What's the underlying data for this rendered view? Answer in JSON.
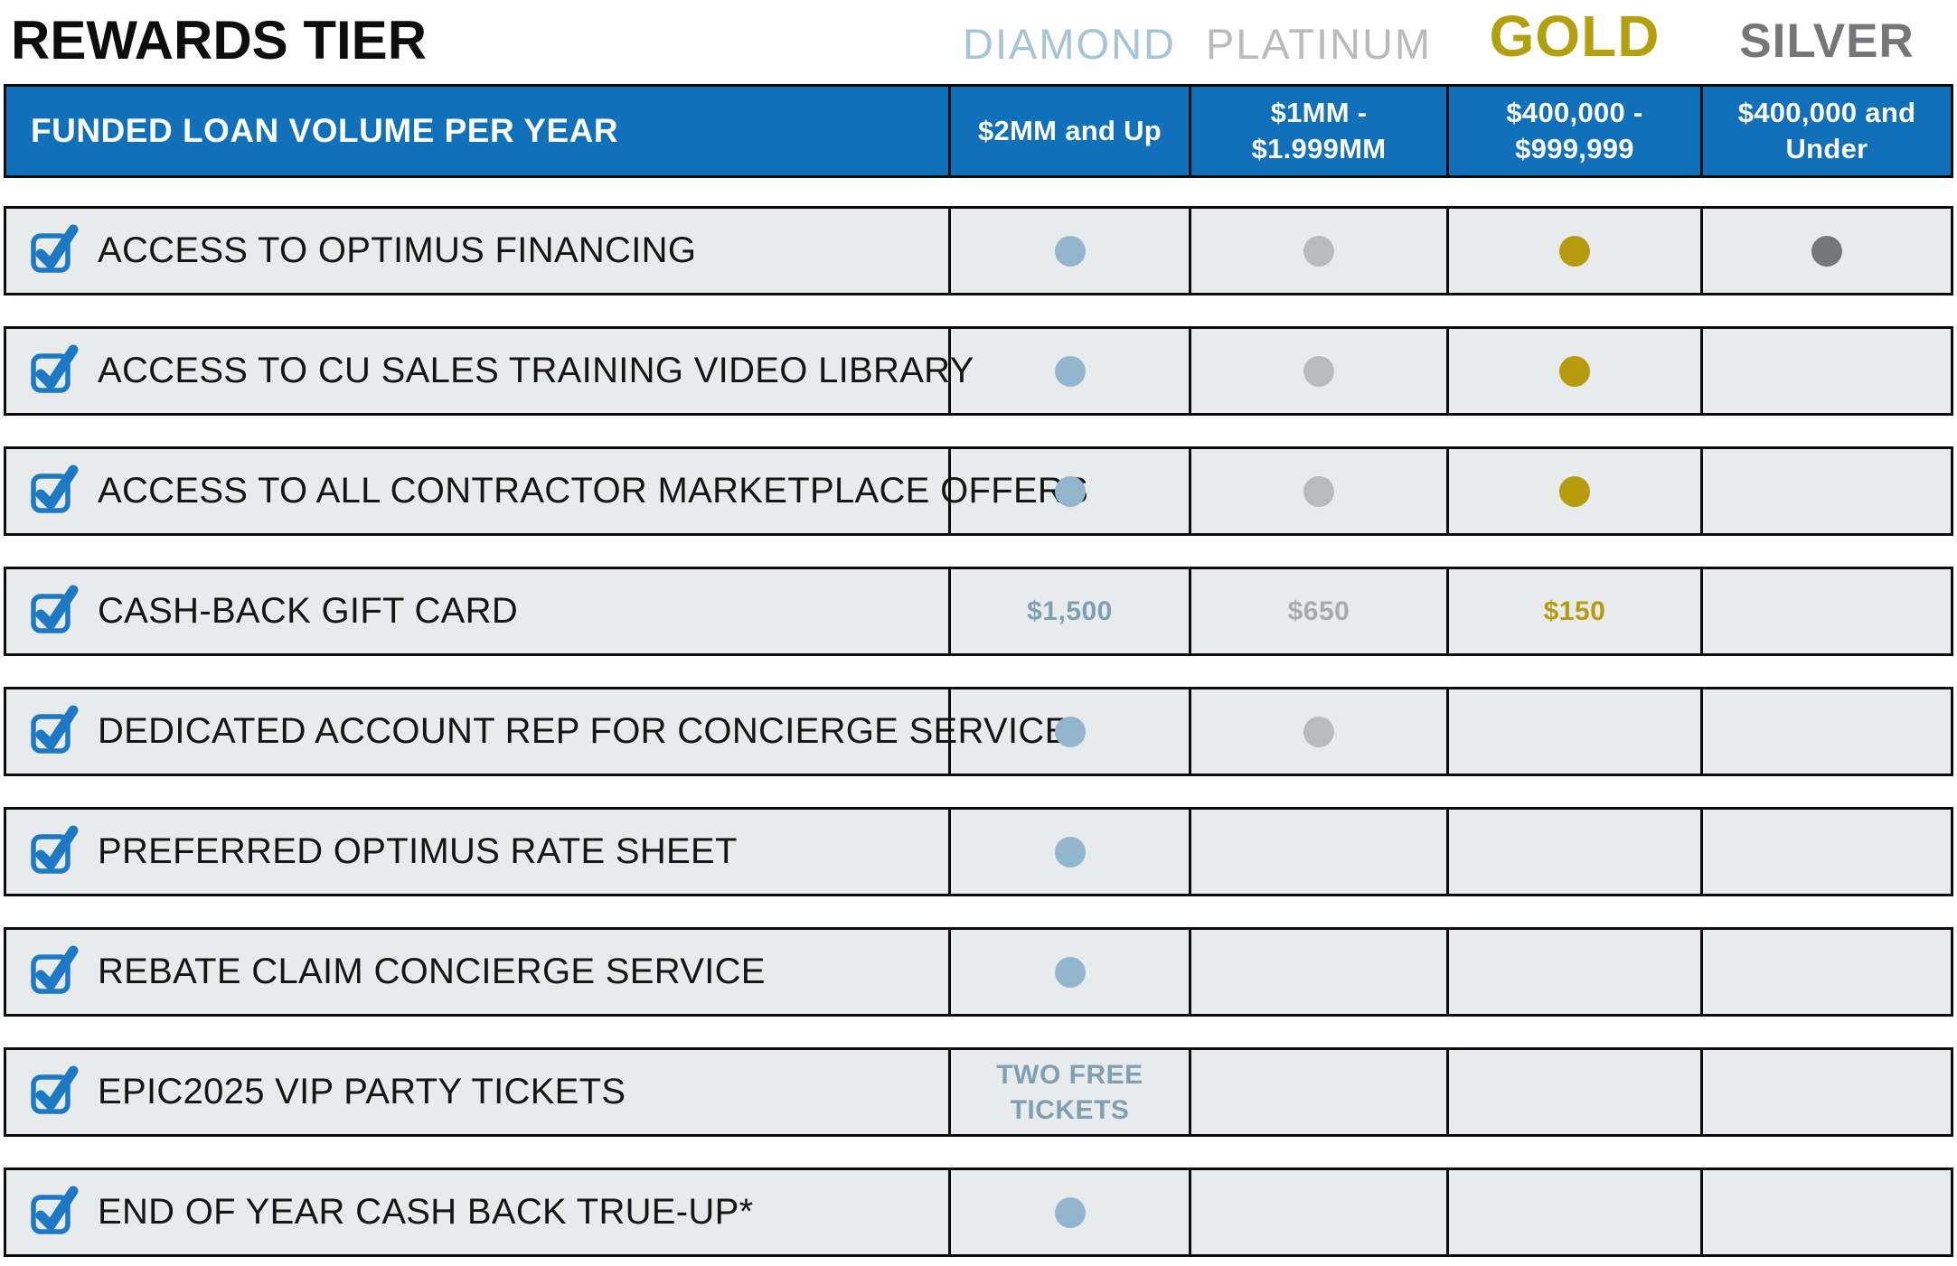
{
  "title": "REWARDS TIER",
  "volume_header": "FUNDED LOAN VOLUME PER YEAR",
  "tiers": [
    {
      "name": "DIAMOND",
      "volume": "$2MM and Up",
      "name_color": "#a6c4d8",
      "dot_color": "#92b6ce",
      "value_color": "#7fa0b2"
    },
    {
      "name": "PLATINUM",
      "volume": "$1MM -\n$1.999MM",
      "name_color": "#b8babb",
      "dot_color": "#b9babb",
      "value_color": "#a8aaac"
    },
    {
      "name": "GOLD",
      "volume": "$400,000 -\n$999,999",
      "name_color": "#b3a00e",
      "dot_color": "#b69b0c",
      "value_color": "#b69b0c"
    },
    {
      "name": "SILVER",
      "volume": "$400,000 and\nUnder",
      "name_color": "#747678",
      "dot_color": "#757677",
      "value_color": "#757677"
    }
  ],
  "rows": [
    {
      "label": "ACCESS TO OPTIMUS FINANCING",
      "cells": [
        {
          "type": "dot"
        },
        {
          "type": "dot"
        },
        {
          "type": "dot"
        },
        {
          "type": "dot"
        }
      ]
    },
    {
      "label": "ACCESS TO CU SALES TRAINING VIDEO LIBRARY",
      "cells": [
        {
          "type": "dot"
        },
        {
          "type": "dot"
        },
        {
          "type": "dot"
        },
        {
          "type": "empty"
        }
      ]
    },
    {
      "label": "ACCESS TO ALL CONTRACTOR MARKETPLACE OFFERS",
      "cells": [
        {
          "type": "dot"
        },
        {
          "type": "dot"
        },
        {
          "type": "dot"
        },
        {
          "type": "empty"
        }
      ]
    },
    {
      "label": "CASH-BACK GIFT CARD",
      "cells": [
        {
          "type": "text",
          "value": "$1,500"
        },
        {
          "type": "text",
          "value": "$650"
        },
        {
          "type": "text",
          "value": "$150"
        },
        {
          "type": "empty"
        }
      ]
    },
    {
      "label": "DEDICATED ACCOUNT REP FOR CONCIERGE SERVICE",
      "cells": [
        {
          "type": "dot"
        },
        {
          "type": "dot"
        },
        {
          "type": "empty"
        },
        {
          "type": "empty"
        }
      ]
    },
    {
      "label": "PREFERRED OPTIMUS RATE SHEET",
      "cells": [
        {
          "type": "dot"
        },
        {
          "type": "empty"
        },
        {
          "type": "empty"
        },
        {
          "type": "empty"
        }
      ]
    },
    {
      "label": "REBATE CLAIM CONCIERGE SERVICE",
      "cells": [
        {
          "type": "dot"
        },
        {
          "type": "empty"
        },
        {
          "type": "empty"
        },
        {
          "type": "empty"
        }
      ]
    },
    {
      "label": "EPIC2025 VIP PARTY TICKETS",
      "cells": [
        {
          "type": "text",
          "value": "TWO FREE\nTICKETS"
        },
        {
          "type": "empty"
        },
        {
          "type": "empty"
        },
        {
          "type": "empty"
        }
      ]
    },
    {
      "label": "END OF YEAR CASH BACK TRUE-UP*",
      "cells": [
        {
          "type": "dot"
        },
        {
          "type": "empty"
        },
        {
          "type": "empty"
        },
        {
          "type": "empty"
        }
      ]
    }
  ],
  "colors": {
    "header_bg": "#1170ba",
    "row_bg": "#e8ebec",
    "border": "#0c0c0c",
    "checkbox_blue": "#1e79c5",
    "title_color": "#0d0d0d"
  },
  "icons": {
    "feature_checkbox": "checkbox-checked-icon"
  },
  "chart_data": {
    "type": "table",
    "title": "REWARDS TIER",
    "columns": [
      "FUNDED LOAN VOLUME PER YEAR",
      "DIAMOND",
      "PLATINUM",
      "GOLD",
      "SILVER"
    ],
    "tier_volumes": [
      "$2MM and Up",
      "$1MM - $1.999MM",
      "$400,000 - $999,999",
      "$400,000 and Under"
    ],
    "rows": [
      [
        "ACCESS TO OPTIMUS FINANCING",
        "included",
        "included",
        "included",
        "included"
      ],
      [
        "ACCESS TO CU SALES TRAINING VIDEO LIBRARY",
        "included",
        "included",
        "included",
        ""
      ],
      [
        "ACCESS TO ALL CONTRACTOR MARKETPLACE OFFERS",
        "included",
        "included",
        "included",
        ""
      ],
      [
        "CASH-BACK GIFT CARD",
        "$1,500",
        "$650",
        "$150",
        ""
      ],
      [
        "DEDICATED ACCOUNT REP FOR CONCIERGE SERVICE",
        "included",
        "included",
        "",
        ""
      ],
      [
        "PREFERRED OPTIMUS RATE SHEET",
        "included",
        "",
        "",
        ""
      ],
      [
        "REBATE CLAIM CONCIERGE SERVICE",
        "included",
        "",
        "",
        ""
      ],
      [
        "EPIC2025 VIP PARTY TICKETS",
        "TWO FREE TICKETS",
        "",
        "",
        ""
      ],
      [
        "END OF YEAR CASH BACK TRUE-UP*",
        "included",
        "",
        "",
        ""
      ]
    ]
  }
}
